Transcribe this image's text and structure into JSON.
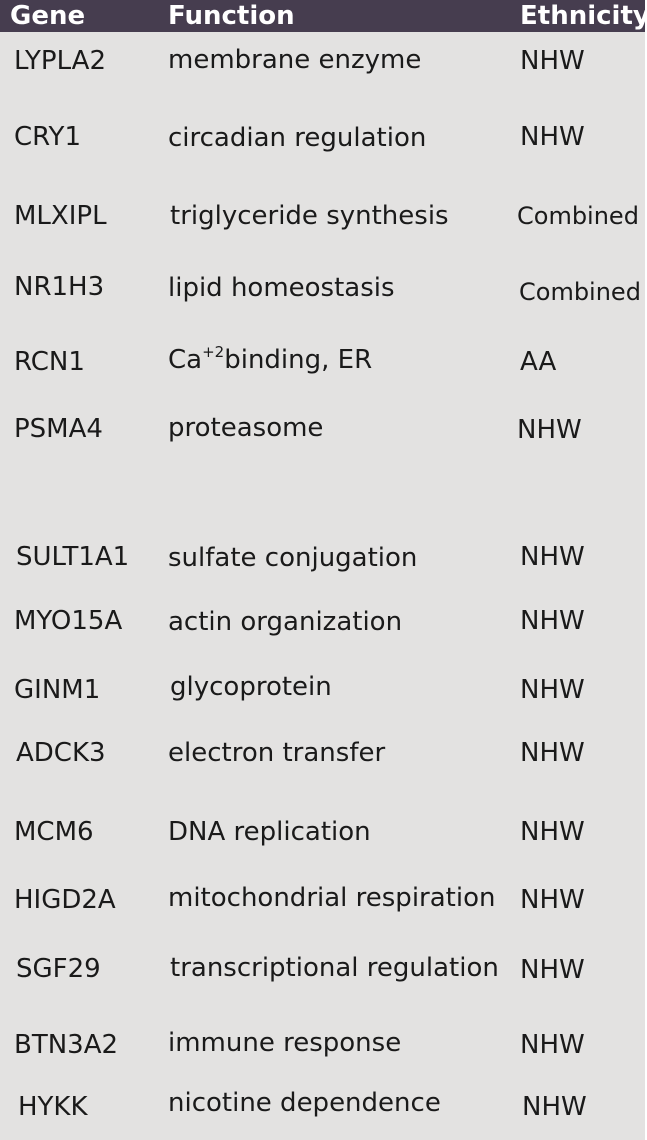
{
  "table": {
    "headers": {
      "gene": "Gene",
      "function": "Function",
      "ethnicity": "Ethnicity"
    },
    "rows": [
      {
        "gene": "LYPLA2",
        "function": "membrane enzyme",
        "ethnicity": "NHW"
      },
      {
        "gene": "CRY1",
        "function": "circadian regulation",
        "ethnicity": "NHW"
      },
      {
        "gene": "MLXIPL",
        "function": "triglyceride synthesis",
        "ethnicity": "Combined"
      },
      {
        "gene": "NR1H3",
        "function": "lipid homeostasis",
        "ethnicity": "Combined"
      },
      {
        "gene": "RCN1",
        "function_prefix": "Ca",
        "function_sup": "+2",
        "function_suffix": "binding, ER",
        "ethnicity": "AA"
      },
      {
        "gene": "PSMA4",
        "function": "proteasome",
        "ethnicity": "NHW"
      },
      {
        "gene": "SULT1A1",
        "function": "sulfate conjugation",
        "ethnicity": "NHW"
      },
      {
        "gene": "MYO15A",
        "function": "actin organization",
        "ethnicity": "NHW"
      },
      {
        "gene": "GINM1",
        "function": "glycoprotein",
        "ethnicity": "NHW"
      },
      {
        "gene": "ADCK3",
        "function": "electron transfer",
        "ethnicity": "NHW"
      },
      {
        "gene": "MCM6",
        "function": "DNA replication",
        "ethnicity": "NHW"
      },
      {
        "gene": "HIGD2A",
        "function": "mitochondrial respiration",
        "ethnicity": "NHW"
      },
      {
        "gene": "SGF29",
        "function": "transcriptional regulation",
        "ethnicity": "NHW"
      },
      {
        "gene": "BTN3A2",
        "function": "immune response",
        "ethnicity": "NHW"
      },
      {
        "gene": "HYKK",
        "function": "nicotine dependence",
        "ethnicity": "NHW"
      }
    ]
  }
}
